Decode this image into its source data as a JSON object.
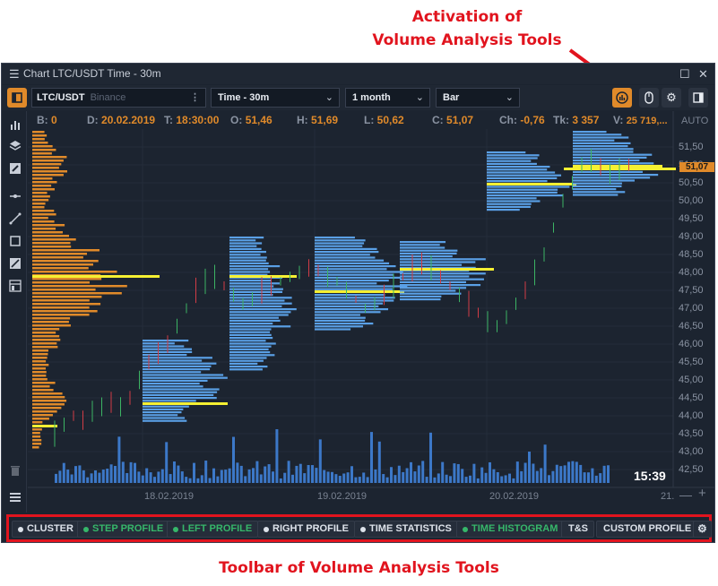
{
  "annotations": {
    "top_line1": "Activation of",
    "top_line2": "Volume Analysis Tools",
    "bottom": "Toolbar of Volume Analysis Tools"
  },
  "window": {
    "title": "Chart LTC/USDT Time - 30m"
  },
  "toolbar": {
    "symbol": "LTC/USDT",
    "exchange": "Binance",
    "timeframe": "Time - 30m",
    "period": "1 month",
    "chart_type": "Bar"
  },
  "infobar": {
    "b_label": "B:",
    "b_value": "0",
    "d_label": "D:",
    "d_value": "20.02.2019",
    "t_label": "T:",
    "t_value": "18:30:00",
    "o_label": "O:",
    "o_value": "51,46",
    "h_label": "H:",
    "h_value": "51,69",
    "l_label": "L:",
    "l_value": "50,62",
    "c_label": "C:",
    "c_value": "51,07",
    "ch_label": "Ch:",
    "ch_value": "-0,76",
    "tk_label": "Tk:",
    "tk_value": "3 357",
    "v_label": "V:",
    "v_value": "25 719,..."
  },
  "price_axis": {
    "auto_label": "AUTO",
    "current_price": "51,07",
    "ticks": [
      "51,50",
      "51,00",
      "50,50",
      "50,00",
      "49,50",
      "49,00",
      "48,50",
      "48,00",
      "47,50",
      "47,00",
      "46,50",
      "46,00",
      "45,50",
      "45,00",
      "44,50",
      "44,00",
      "43,50",
      "43,00",
      "42,50"
    ]
  },
  "time_axis": {
    "dates": [
      "18.02.2019",
      "19.02.2019",
      "20.02.2019",
      "21."
    ]
  },
  "clock": "15:39",
  "volume_tools": [
    {
      "label": "CLUSTER",
      "state": "off"
    },
    {
      "label": "STEP PROFILE",
      "state": "on"
    },
    {
      "label": "LEFT PROFILE",
      "state": "on"
    },
    {
      "label": "RIGHT PROFILE",
      "state": "off"
    },
    {
      "label": "TIME STATISTICS",
      "state": "off"
    },
    {
      "label": "TIME HISTOGRAM",
      "state": "on"
    },
    {
      "label": "T&S",
      "state": "none"
    },
    {
      "label": "CUSTOM PROFILE",
      "state": "none"
    }
  ],
  "colors": {
    "accent_red": "#e1141e",
    "orange": "#e08a2a",
    "profile_blue": "#5aa0e6",
    "poc_yellow": "#f5f032",
    "active_green": "#36b76a",
    "bg": "#1c2430"
  },
  "icons": [
    "menu-icon",
    "maximize-icon",
    "close-icon",
    "layout-toggle-icon",
    "volume-analysis-icon",
    "mouse-icon",
    "gear-icon",
    "sidebar-icon"
  ]
}
